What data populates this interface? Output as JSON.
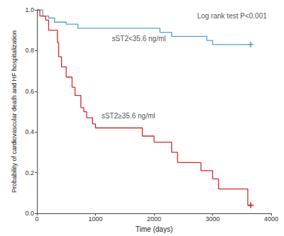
{
  "chart_data": {
    "type": "line",
    "x_label": "Time (days)",
    "y_label": "Probability of cardiovascular death and HF hospitalization",
    "xlim": [
      0,
      4000
    ],
    "xticks": [
      0,
      1000,
      2000,
      3000,
      4000
    ],
    "ylim": [
      0,
      1
    ],
    "yticks": [
      {
        "value": 0,
        "label": "0.0"
      },
      {
        "value": 0.2,
        "label": "0.2"
      },
      {
        "value": 0.4,
        "label": "0.4"
      },
      {
        "value": 0.6,
        "label": "0.6"
      },
      {
        "value": 0.8,
        "label": "0.8"
      },
      {
        "value": 1,
        "label": "1.0"
      }
    ],
    "grid": false,
    "line_style": "step",
    "marker": "plus",
    "series": [
      {
        "color": "#4f9fd8",
        "x": [
          0,
          100,
          200,
          300,
          500,
          700,
          2100,
          2300,
          2900,
          3000,
          3650
        ],
        "values": [
          1.0,
          0.97,
          0.96,
          0.94,
          0.93,
          0.91,
          0.89,
          0.87,
          0.85,
          0.83,
          0.83
        ]
      },
      {
        "color": "#d42a2a",
        "x": [
          0,
          50,
          150,
          200,
          350,
          370,
          420,
          500,
          600,
          650,
          750,
          800,
          850,
          950,
          1000,
          1800,
          2000,
          2300,
          2400,
          2800,
          3000,
          3100,
          3600,
          3650
        ],
        "values": [
          1.0,
          0.97,
          0.95,
          0.9,
          0.84,
          0.77,
          0.72,
          0.67,
          0.62,
          0.58,
          0.52,
          0.5,
          0.47,
          0.44,
          0.42,
          0.38,
          0.35,
          0.3,
          0.25,
          0.21,
          0.17,
          0.12,
          0.04,
          0.04
        ]
      }
    ],
    "annotations": [
      {
        "text": "Log rank test P<0.001",
        "x": 3330,
        "y": 0.97
      },
      {
        "text": "sST2<35.6 ng/ml",
        "x": 1740,
        "y": 0.86
      },
      {
        "text": "sST2≥35.6 ng/ml",
        "x": 1560,
        "y": 0.48
      }
    ]
  }
}
